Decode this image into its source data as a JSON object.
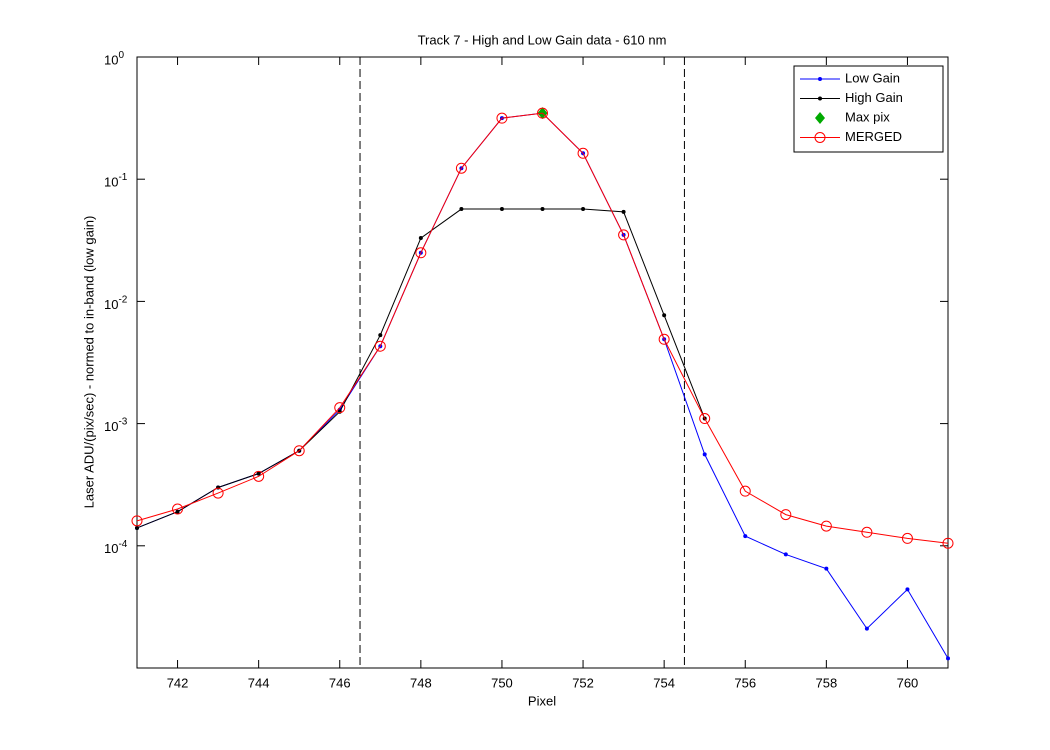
{
  "chart_data": {
    "type": "line",
    "title": "Track 7 - High and Low Gain data - 610 nm",
    "xlabel": "Pixel",
    "ylabel": "Laser ADU/(pix/sec) - normed to in-band (low gain)",
    "x": [
      741,
      742,
      743,
      744,
      745,
      746,
      747,
      748,
      749,
      750,
      751,
      752,
      753,
      754,
      755,
      756,
      757,
      758,
      759,
      760,
      761
    ],
    "series": [
      {
        "name": "Low Gain",
        "color": "#0000ff",
        "marker": "dot",
        "line": true,
        "values": [
          0.00014,
          0.00019,
          0.0003,
          0.00039,
          0.0006,
          0.0013,
          0.0043,
          0.025,
          0.123,
          0.316,
          0.347,
          0.163,
          0.035,
          0.0049,
          0.00056,
          0.00012,
          8.5e-05,
          6.5e-05,
          2.1e-05,
          4.4e-05,
          1.2e-05
        ]
      },
      {
        "name": "High Gain",
        "color": "#000000",
        "marker": "dot",
        "line": true,
        "values": [
          0.00014,
          0.00019,
          0.0003,
          0.00039,
          0.0006,
          0.00125,
          0.0053,
          0.033,
          0.057,
          0.057,
          0.057,
          0.057,
          0.054,
          0.0077,
          0.0011,
          null,
          null,
          null,
          null,
          null,
          null
        ]
      },
      {
        "name": "Max pix",
        "color": "#00aa00",
        "marker": "diamond",
        "line": false,
        "values": [
          null,
          null,
          null,
          null,
          null,
          null,
          null,
          null,
          null,
          null,
          0.347,
          null,
          null,
          null,
          null,
          null,
          null,
          null,
          null,
          null,
          null
        ]
      },
      {
        "name": "MERGED",
        "color": "#ff0000",
        "marker": "circle",
        "line": true,
        "values": [
          0.00016,
          0.0002,
          0.00027,
          0.00037,
          0.0006,
          0.00135,
          0.0043,
          0.025,
          0.123,
          0.316,
          0.347,
          0.163,
          0.035,
          0.0049,
          0.0011,
          0.00028,
          0.00018,
          0.000145,
          0.000129,
          0.000115,
          0.000105
        ]
      }
    ],
    "vlines": [
      746.5,
      754.5
    ],
    "xlim": [
      741,
      761
    ],
    "xticks": [
      742,
      744,
      746,
      748,
      750,
      752,
      754,
      756,
      758,
      760
    ],
    "ylim": [
      1e-05,
      1
    ],
    "yscale": "log",
    "yticks": [
      {
        "value": 1,
        "label": "10^0"
      },
      {
        "value": 0.1,
        "label": "10^-1"
      },
      {
        "value": 0.01,
        "label": "10^-2"
      },
      {
        "value": 0.001,
        "label": "10^-3"
      },
      {
        "value": 0.0001,
        "label": "10^-4"
      }
    ],
    "legend": "northeast"
  }
}
